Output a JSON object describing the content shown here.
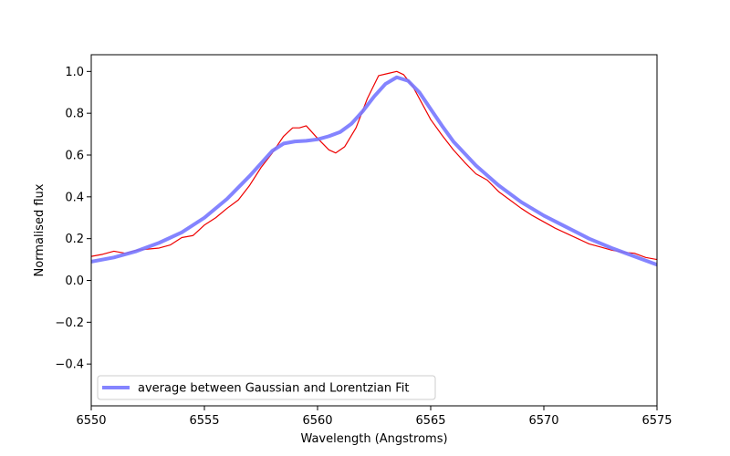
{
  "chart_data": {
    "type": "line",
    "title": "",
    "xlabel": "Wavelength (Angstroms)",
    "ylabel": "Normalised flux",
    "xlim": [
      6550,
      6575
    ],
    "ylim": [
      -0.6,
      1.08
    ],
    "xticks": [
      6550,
      6555,
      6560,
      6565,
      6570,
      6575
    ],
    "xtick_labels": [
      "6550",
      "6555",
      "6560",
      "6565",
      "6570",
      "6575"
    ],
    "yticks": [
      -0.4,
      -0.2,
      0.0,
      0.2,
      0.4,
      0.6,
      0.8,
      1.0
    ],
    "ytick_labels": [
      "−0.4",
      "−0.2",
      "0.0",
      "0.2",
      "0.4",
      "0.6",
      "0.8",
      "1.0"
    ],
    "grid": false,
    "legend_position": "lower-left",
    "series": [
      {
        "color": "#ee0000",
        "x": [
          6550.0,
          6550.5,
          6551.0,
          6551.5,
          6552.0,
          6552.5,
          6553.0,
          6553.5,
          6554.0,
          6554.5,
          6555.0,
          6555.5,
          6556.0,
          6556.5,
          6557.0,
          6557.5,
          6558.0,
          6558.5,
          6558.9,
          6559.2,
          6559.5,
          6560.0,
          6560.5,
          6560.8,
          6561.2,
          6561.7,
          6562.2,
          6562.7,
          6563.1,
          6563.5,
          6563.8,
          6564.2,
          6564.6,
          6565.0,
          6565.5,
          6566.0,
          6566.5,
          6567.0,
          6567.5,
          6568.0,
          6568.5,
          6569.0,
          6569.5,
          6570.0,
          6570.5,
          6571.0,
          6571.5,
          6572.0,
          6572.5,
          6573.0,
          6573.5,
          6574.0,
          6574.5,
          6575.0
        ],
        "y": [
          0.115,
          0.125,
          0.14,
          0.13,
          0.145,
          0.15,
          0.155,
          0.17,
          0.205,
          0.215,
          0.265,
          0.3,
          0.345,
          0.385,
          0.455,
          0.54,
          0.61,
          0.69,
          0.73,
          0.73,
          0.74,
          0.68,
          0.625,
          0.61,
          0.64,
          0.73,
          0.87,
          0.98,
          0.99,
          1.0,
          0.985,
          0.93,
          0.85,
          0.77,
          0.695,
          0.625,
          0.565,
          0.51,
          0.48,
          0.425,
          0.385,
          0.345,
          0.31,
          0.28,
          0.25,
          0.225,
          0.2,
          0.175,
          0.16,
          0.145,
          0.135,
          0.13,
          0.11,
          0.1
        ]
      },
      {
        "name": "average between Gaussian and Lorentzian Fit",
        "color": "#7777ff",
        "x": [
          6550.0,
          6551.0,
          6552.0,
          6553.0,
          6554.0,
          6555.0,
          6556.0,
          6557.0,
          6557.5,
          6558.0,
          6558.5,
          6559.0,
          6559.5,
          6560.0,
          6560.5,
          6561.0,
          6561.5,
          6562.0,
          6562.5,
          6563.0,
          6563.5,
          6564.0,
          6564.5,
          6565.0,
          6565.5,
          6566.0,
          6567.0,
          6568.0,
          6569.0,
          6570.0,
          6571.0,
          6572.0,
          6573.0,
          6574.0,
          6575.0
        ],
        "y": [
          0.09,
          0.11,
          0.14,
          0.18,
          0.23,
          0.3,
          0.39,
          0.5,
          0.56,
          0.62,
          0.655,
          0.665,
          0.668,
          0.675,
          0.69,
          0.71,
          0.75,
          0.81,
          0.88,
          0.94,
          0.972,
          0.955,
          0.9,
          0.82,
          0.74,
          0.665,
          0.55,
          0.455,
          0.375,
          0.31,
          0.255,
          0.2,
          0.155,
          0.115,
          0.075
        ]
      }
    ]
  }
}
